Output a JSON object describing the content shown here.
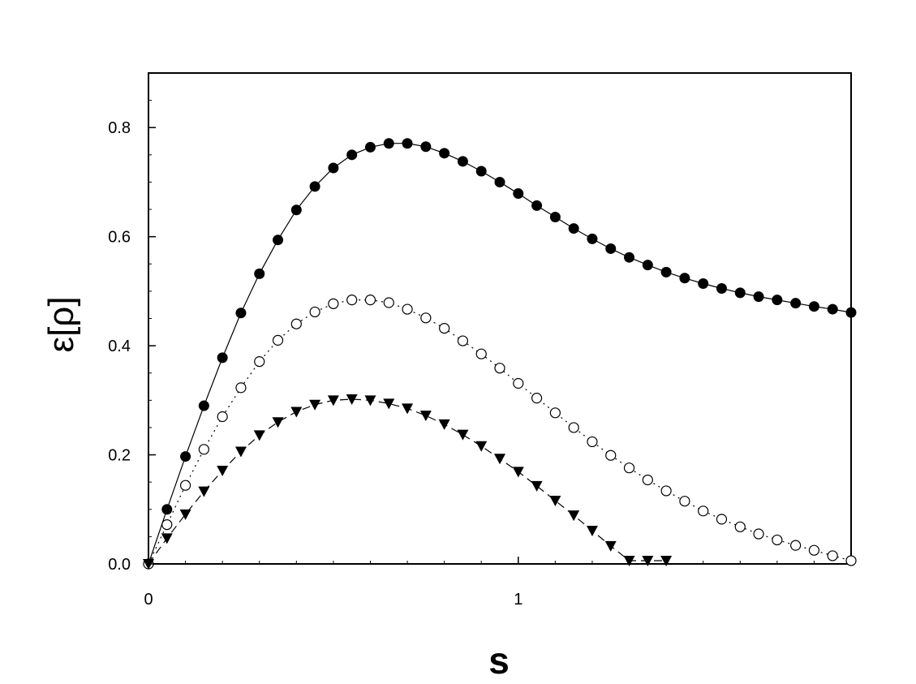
{
  "chart_data": {
    "type": "line",
    "xlabel": "s",
    "ylabel": "ε[ρ]",
    "xlim": [
      0,
      1.9
    ],
    "ylim": [
      0,
      0.9
    ],
    "x_ticks": [
      "0",
      "1"
    ],
    "y_ticks": [
      "0.0",
      "0.2",
      "0.4",
      "0.6",
      "0.8"
    ],
    "grid": false,
    "series": [
      {
        "marker": "filled-circle",
        "line": "solid",
        "x": [
          0,
          0.05,
          0.1,
          0.15,
          0.2,
          0.25,
          0.3,
          0.35,
          0.4,
          0.45,
          0.5,
          0.55,
          0.6,
          0.65,
          0.7,
          0.75,
          0.8,
          0.85,
          0.9,
          0.95,
          1.0,
          1.05,
          1.1,
          1.15,
          1.2,
          1.25,
          1.3,
          1.35,
          1.4,
          1.45,
          1.5,
          1.55,
          1.6,
          1.65,
          1.7,
          1.75,
          1.8,
          1.85,
          1.9
        ],
        "values": [
          0,
          0.1,
          0.197,
          0.29,
          0.378,
          0.46,
          0.532,
          0.594,
          0.649,
          0.692,
          0.726,
          0.75,
          0.764,
          0.771,
          0.771,
          0.765,
          0.753,
          0.738,
          0.72,
          0.7,
          0.679,
          0.657,
          0.636,
          0.615,
          0.596,
          0.578,
          0.562,
          0.548,
          0.535,
          0.524,
          0.514,
          0.505,
          0.497,
          0.49,
          0.484,
          0.478,
          0.472,
          0.467,
          0.461
        ]
      },
      {
        "marker": "open-circle",
        "line": "dotted",
        "x": [
          0,
          0.05,
          0.1,
          0.15,
          0.2,
          0.25,
          0.3,
          0.35,
          0.4,
          0.45,
          0.5,
          0.55,
          0.6,
          0.65,
          0.7,
          0.75,
          0.8,
          0.85,
          0.9,
          0.95,
          1.0,
          1.05,
          1.1,
          1.15,
          1.2,
          1.25,
          1.3,
          1.35,
          1.4,
          1.45,
          1.5,
          1.55,
          1.6,
          1.65,
          1.7,
          1.75,
          1.8,
          1.85,
          1.9
        ],
        "values": [
          0,
          0.072,
          0.144,
          0.21,
          0.27,
          0.323,
          0.371,
          0.41,
          0.44,
          0.462,
          0.477,
          0.484,
          0.484,
          0.479,
          0.467,
          0.451,
          0.432,
          0.409,
          0.385,
          0.359,
          0.331,
          0.304,
          0.277,
          0.25,
          0.224,
          0.199,
          0.176,
          0.154,
          0.134,
          0.115,
          0.097,
          0.082,
          0.068,
          0.055,
          0.044,
          0.034,
          0.025,
          0.015,
          0.006
        ]
      },
      {
        "marker": "filled-triangle-down",
        "line": "dashed",
        "x": [
          0,
          0.05,
          0.1,
          0.15,
          0.2,
          0.25,
          0.3,
          0.35,
          0.4,
          0.45,
          0.5,
          0.55,
          0.6,
          0.65,
          0.7,
          0.75,
          0.8,
          0.85,
          0.9,
          0.95,
          1.0,
          1.05,
          1.1,
          1.15,
          1.2,
          1.25,
          1.3,
          1.35,
          1.4
        ],
        "values": [
          0,
          0.047,
          0.091,
          0.133,
          0.171,
          0.206,
          0.236,
          0.26,
          0.279,
          0.292,
          0.3,
          0.302,
          0.3,
          0.294,
          0.285,
          0.272,
          0.256,
          0.237,
          0.216,
          0.193,
          0.169,
          0.143,
          0.116,
          0.089,
          0.061,
          0.033,
          0.006,
          0.006,
          0.006
        ]
      }
    ]
  }
}
